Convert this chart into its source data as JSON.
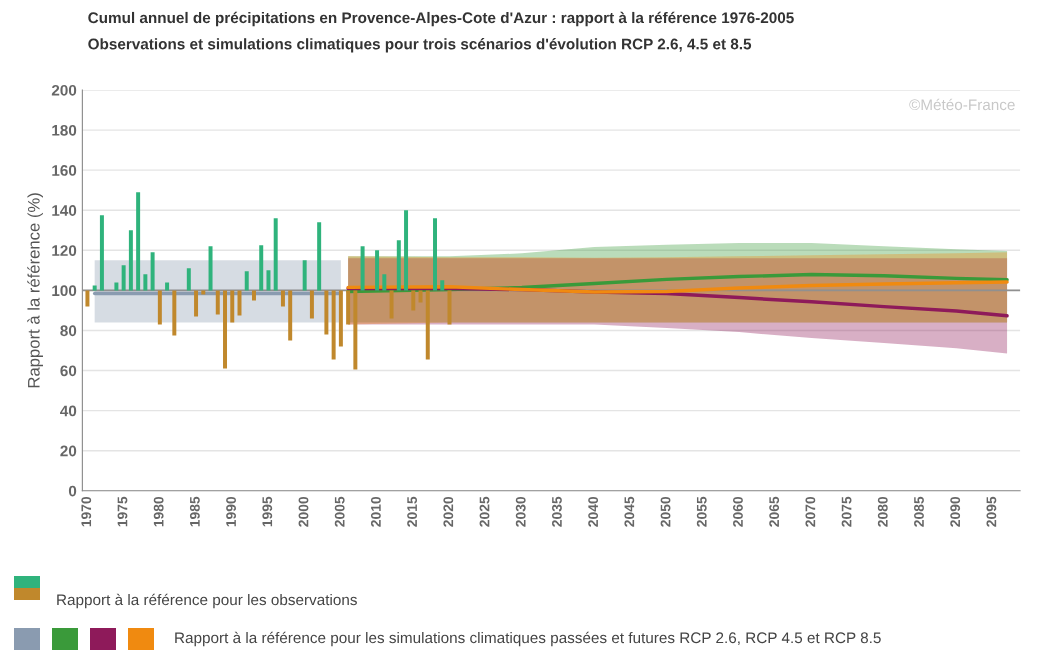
{
  "chart_data": {
    "type": "bar",
    "title": "Cumul annuel de précipitations en Provence-Alpes-Cote d'Azur : rapport à la référence 1976-2005",
    "subtitle": "Observations et simulations climatiques pour trois scénarios d'évolution RCP 2.6, 4.5 et 8.5",
    "ylabel": "Rapport à la référence (%)",
    "annotations": [
      "©Météo-France"
    ],
    "series": [
      {
        "type": "line",
        "color": "#8a9bb0",
        "x": [
          1971,
          2005
        ],
        "values": [
          98.5,
          98.5
        ],
        "lower": [
          84,
          84
        ],
        "upper": [
          115,
          115
        ]
      },
      {
        "type": "line",
        "color": "#3a9a3a",
        "x": [
          2006,
          2020,
          2030,
          2040,
          2050,
          2060,
          2070,
          2080,
          2090,
          2097
        ],
        "values": [
          99.5,
          100.5,
          101.4,
          103.4,
          105.5,
          106.9,
          107.9,
          107.3,
          106,
          105.3
        ],
        "lower": [
          84,
          84,
          84,
          84,
          84,
          84,
          84,
          84,
          84,
          84
        ],
        "upper": [
          117,
          117,
          118.5,
          121.6,
          122.8,
          123.6,
          123.6,
          122,
          120.5,
          119.6
        ]
      },
      {
        "type": "line",
        "color": "#8e1a5a",
        "x": [
          2006,
          2020,
          2030,
          2040,
          2050,
          2060,
          2070,
          2080,
          2090,
          2097
        ],
        "values": [
          101,
          101,
          100.4,
          99.2,
          98.4,
          96.4,
          94.3,
          91.9,
          89.7,
          87.3
        ],
        "lower": [
          83,
          83,
          83,
          83,
          81.2,
          79.2,
          76.2,
          73.7,
          71.1,
          68.5
        ],
        "upper": [
          116,
          116,
          116,
          116,
          116,
          116,
          116,
          116,
          116,
          116
        ]
      },
      {
        "type": "line",
        "name": "Rapport à la référence pour les simulations climatiques passées et futures RCP 2.6, RCP 4.5 et RCP 8.5",
        "color": "#f08a10",
        "x": [
          2006,
          2020,
          2030,
          2040,
          2050,
          2060,
          2070,
          2080,
          2090,
          2097
        ],
        "values": [
          101.5,
          101.8,
          100.4,
          99.2,
          99.4,
          101.2,
          102.4,
          103.2,
          103.8,
          104.2
        ],
        "lower": [
          83,
          84,
          84,
          84,
          84,
          84,
          84,
          84,
          84,
          84
        ],
        "upper": [
          117,
          116.6,
          116.5,
          116.3,
          116.5,
          117,
          117.5,
          118,
          118.5,
          119
        ]
      },
      {
        "name": "Rapport à la référence pour les observations",
        "x": [
          1970,
          1971,
          1972,
          1973,
          1974,
          1975,
          1976,
          1977,
          1978,
          1979,
          1980,
          1981,
          1982,
          1983,
          1984,
          1985,
          1986,
          1987,
          1988,
          1989,
          1990,
          1991,
          1992,
          1993,
          1994,
          1995,
          1996,
          1997,
          1998,
          1999,
          2000,
          2001,
          2002,
          2003,
          2004,
          2005,
          2006,
          2007,
          2008,
          2009,
          2010,
          2011,
          2012,
          2013,
          2014,
          2015,
          2016,
          2017,
          2018,
          2019,
          2020
        ],
        "values": [
          -8,
          2.5,
          37.5,
          null,
          4,
          12.5,
          30,
          49,
          8,
          19,
          -17,
          4,
          -22.5,
          null,
          11,
          -13,
          -2,
          22,
          -12,
          -39,
          -16,
          -12.5,
          9.5,
          -5,
          22.5,
          10,
          36,
          -8,
          -25,
          null,
          15,
          -14,
          34,
          -22,
          -34.5,
          -28,
          -17,
          -39.5,
          22,
          null,
          20,
          8,
          -14,
          25,
          40,
          -10,
          -6,
          -34.5,
          36,
          5,
          -17
        ],
        "base": [
          100,
          100,
          100,
          null,
          100,
          100,
          100,
          100,
          100,
          100,
          100,
          100,
          100,
          null,
          100,
          100,
          100,
          100,
          100,
          100,
          100,
          100,
          100,
          100,
          100,
          100,
          100,
          100,
          100,
          null,
          100,
          100,
          100,
          100,
          100,
          100,
          100,
          100,
          100,
          null,
          100,
          100,
          100,
          100,
          100,
          100,
          100,
          100,
          100,
          100,
          100
        ],
        "colors": [
          "#c0882c",
          "#2fb37c",
          "#2fb37c",
          null,
          "#2fb37c",
          "#2fb37c",
          "#2fb37c",
          "#2fb37c",
          "#2fb37c",
          "#2fb37c",
          "#c0882c",
          "#2fb37c",
          "#c0882c",
          null,
          "#2fb37c",
          "#c0882c",
          "#c0882c",
          "#2fb37c",
          "#c0882c",
          "#c0882c",
          "#c0882c",
          "#c0882c",
          "#2fb37c",
          "#c0882c",
          "#2fb37c",
          "#2fb37c",
          "#2fb37c",
          "#c0882c",
          "#c0882c",
          null,
          "#2fb37c",
          "#c0882c",
          "#2fb37c",
          "#c0882c",
          "#c0882c",
          "#c0882c",
          "#c0882c",
          "#c0882c",
          "#2fb37c",
          null,
          "#2fb37c",
          "#2fb37c",
          "#c0882c",
          "#2fb37c",
          "#2fb37c",
          "#c0882c",
          "#c0882c",
          "#c0882c",
          "#2fb37c",
          "#2fb37c",
          "#c0882c"
        ]
      }
    ],
    "ref_lines": [
      {
        "axis": "y",
        "value": 100,
        "color": "#909090"
      }
    ],
    "xlim": [
      1969.3,
      2098.8
    ],
    "ylim": [
      0,
      200
    ],
    "xticks": [
      1970,
      1975,
      1980,
      1985,
      1990,
      1995,
      2000,
      2005,
      2010,
      2015,
      2020,
      2025,
      2030,
      2035,
      2040,
      2045,
      2050,
      2055,
      2060,
      2065,
      2070,
      2075,
      2080,
      2085,
      2090,
      2095
    ],
    "yticks": [
      0,
      20,
      40,
      60,
      80,
      100,
      120,
      140,
      160,
      180,
      200
    ],
    "grid": "y",
    "legend": "bottom"
  }
}
